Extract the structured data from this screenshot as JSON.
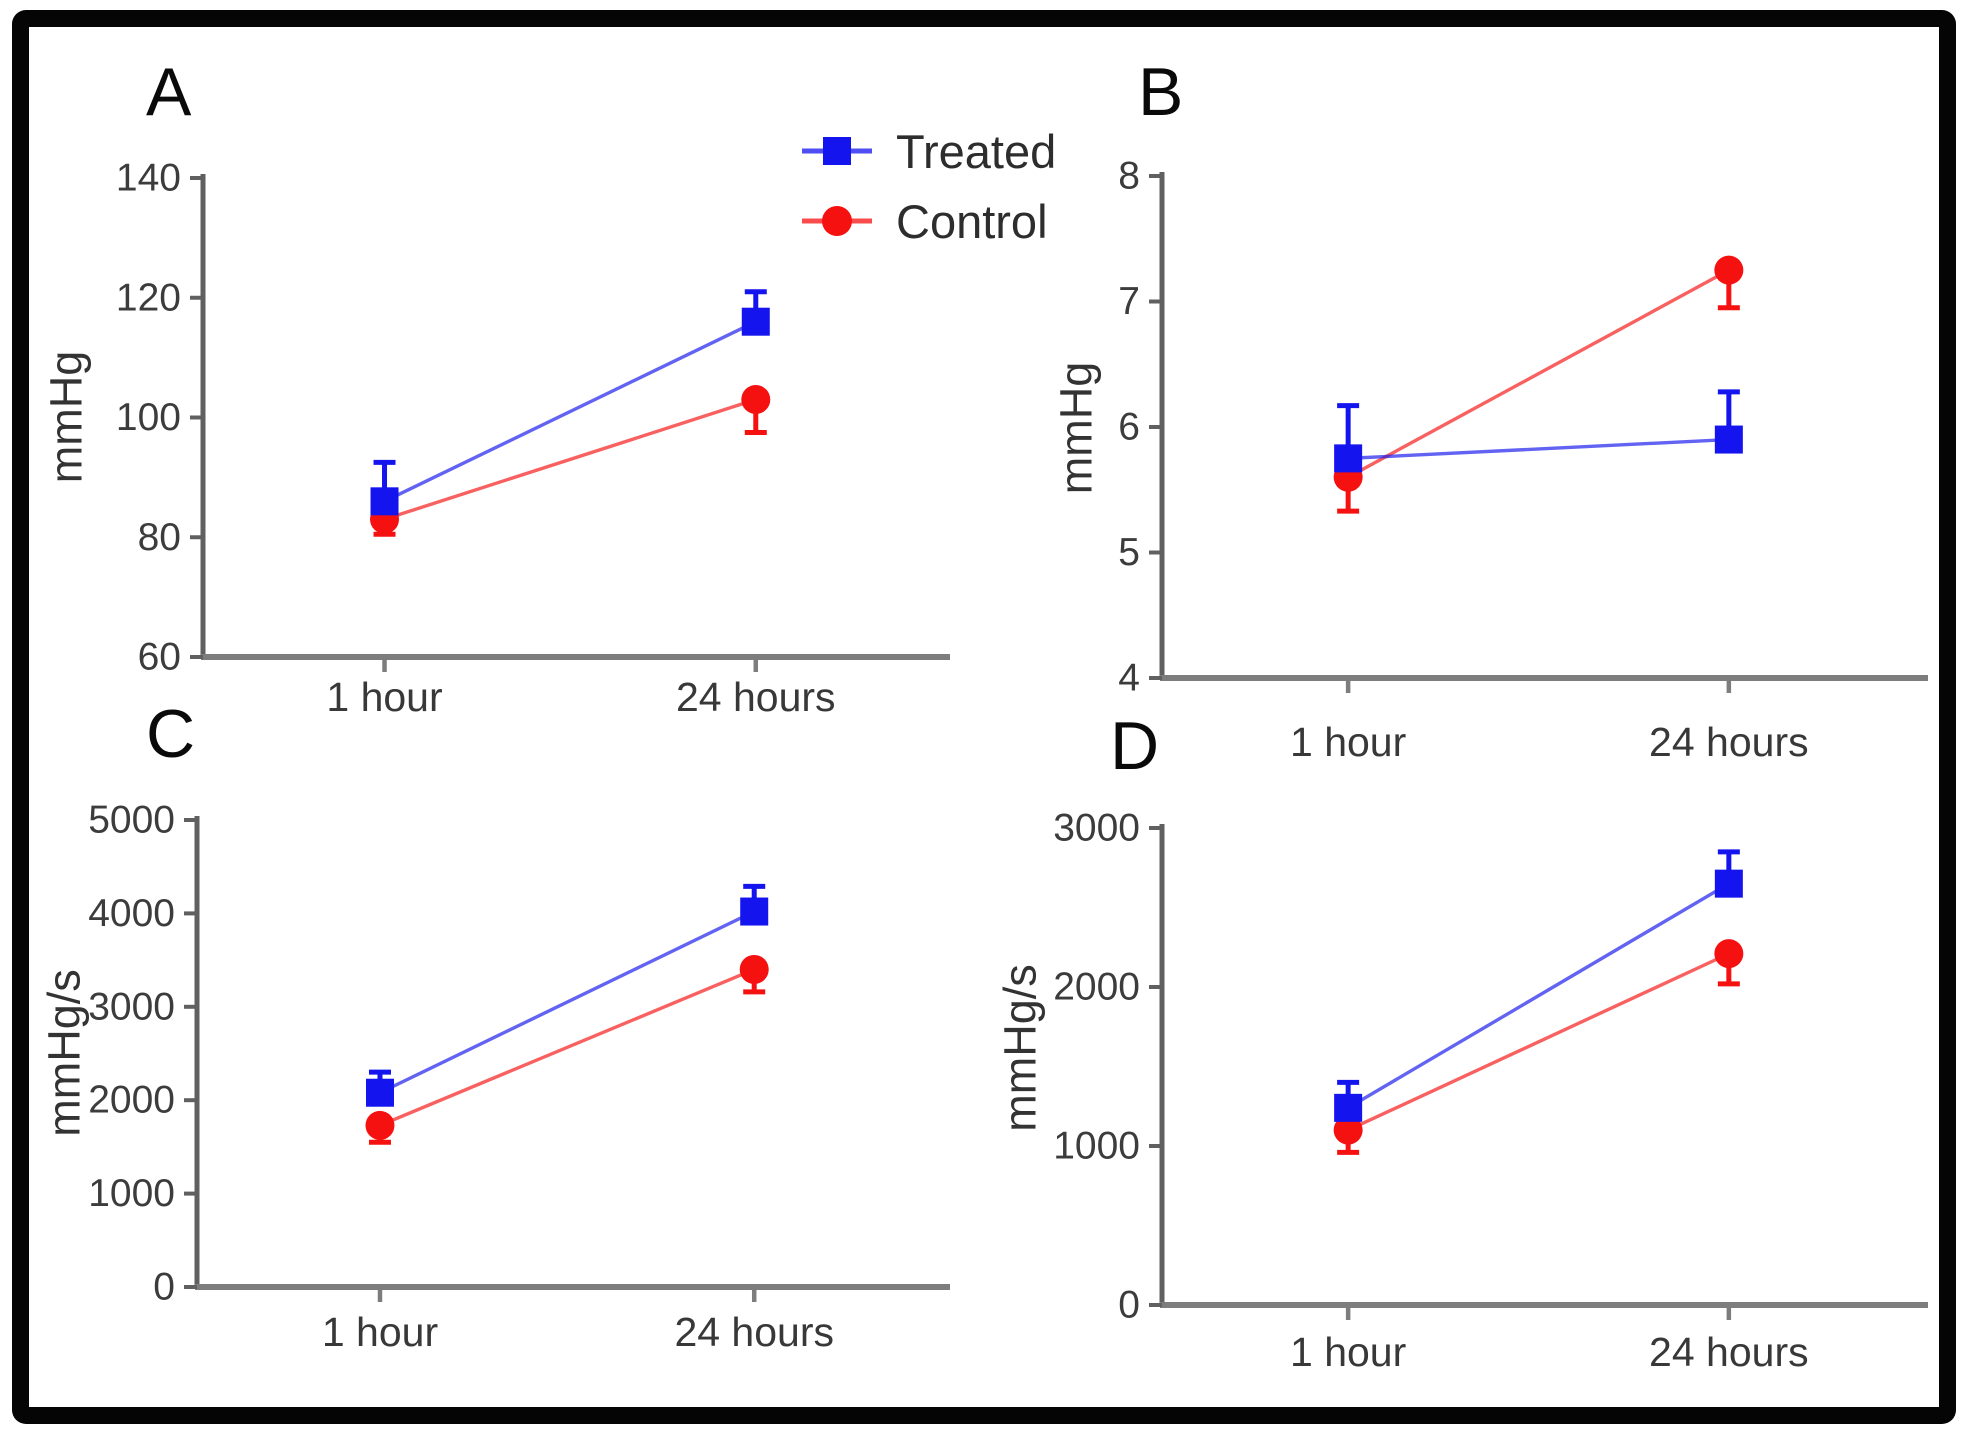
{
  "legend": {
    "items": [
      {
        "label": "Treated",
        "marker": "square",
        "color": "#1414ee"
      },
      {
        "label": "Control",
        "marker": "circle",
        "color": "#f61111"
      }
    ]
  },
  "colors": {
    "treated": "#1414ee",
    "control": "#f61111",
    "x_axis": "#7d7d7d",
    "y_axis": "#606060",
    "tick_text": "#3c3c3c"
  },
  "chart_data": [
    {
      "type": "line",
      "panel_letter": "A",
      "ylabel": "mmHg",
      "ylim": [
        60,
        140
      ],
      "yticks": [
        60,
        80,
        100,
        120,
        140
      ],
      "categories": [
        "1 hour",
        "24 hours"
      ],
      "grid": false,
      "series": [
        {
          "name": "Treated",
          "color": "#1414ee",
          "marker": "square",
          "values": [
            86,
            116
          ],
          "err_up": [
            6.5,
            5
          ],
          "err_down": [
            0,
            0
          ]
        },
        {
          "name": "Control",
          "color": "#f61111",
          "marker": "circle",
          "values": [
            83,
            103
          ],
          "err_up": [
            0,
            0
          ],
          "err_down": [
            2.5,
            5.5
          ]
        }
      ]
    },
    {
      "type": "line",
      "panel_letter": "B",
      "ylabel": "mmHg",
      "ylim": [
        4,
        8
      ],
      "yticks": [
        4,
        5,
        6,
        7,
        8
      ],
      "categories": [
        "1 hour",
        "24 hours"
      ],
      "grid": false,
      "series": [
        {
          "name": "Treated",
          "color": "#1414ee",
          "marker": "square",
          "values": [
            5.75,
            5.9
          ],
          "err_up": [
            0.42,
            0.38
          ],
          "err_down": [
            0,
            0
          ]
        },
        {
          "name": "Control",
          "color": "#f61111",
          "marker": "circle",
          "values": [
            5.6,
            7.25
          ],
          "err_up": [
            0,
            0
          ],
          "err_down": [
            0.27,
            0.3
          ]
        }
      ]
    },
    {
      "type": "line",
      "panel_letter": "C",
      "ylabel": "mmHg/s",
      "ylim": [
        0,
        5000
      ],
      "yticks": [
        0,
        1000,
        2000,
        3000,
        4000,
        5000
      ],
      "categories": [
        "1 hour",
        "24 hours"
      ],
      "grid": false,
      "series": [
        {
          "name": "Treated",
          "color": "#1414ee",
          "marker": "square",
          "values": [
            2080,
            4020
          ],
          "err_up": [
            220,
            270
          ],
          "err_down": [
            0,
            0
          ]
        },
        {
          "name": "Control",
          "color": "#f61111",
          "marker": "circle",
          "values": [
            1730,
            3400
          ],
          "err_up": [
            0,
            0
          ],
          "err_down": [
            180,
            240
          ]
        }
      ]
    },
    {
      "type": "line",
      "panel_letter": "D",
      "ylabel": "mmHg/s",
      "ylim": [
        0,
        3000
      ],
      "yticks": [
        0,
        1000,
        2000,
        3000
      ],
      "categories": [
        "1 hour",
        "24 hours"
      ],
      "grid": false,
      "series": [
        {
          "name": "Treated",
          "color": "#1414ee",
          "marker": "square",
          "values": [
            1240,
            2650
          ],
          "err_up": [
            160,
            200
          ],
          "err_down": [
            0,
            0
          ]
        },
        {
          "name": "Control",
          "color": "#f61111",
          "marker": "circle",
          "values": [
            1100,
            2210
          ],
          "err_up": [
            0,
            0
          ],
          "err_down": [
            140,
            190
          ]
        }
      ]
    }
  ]
}
